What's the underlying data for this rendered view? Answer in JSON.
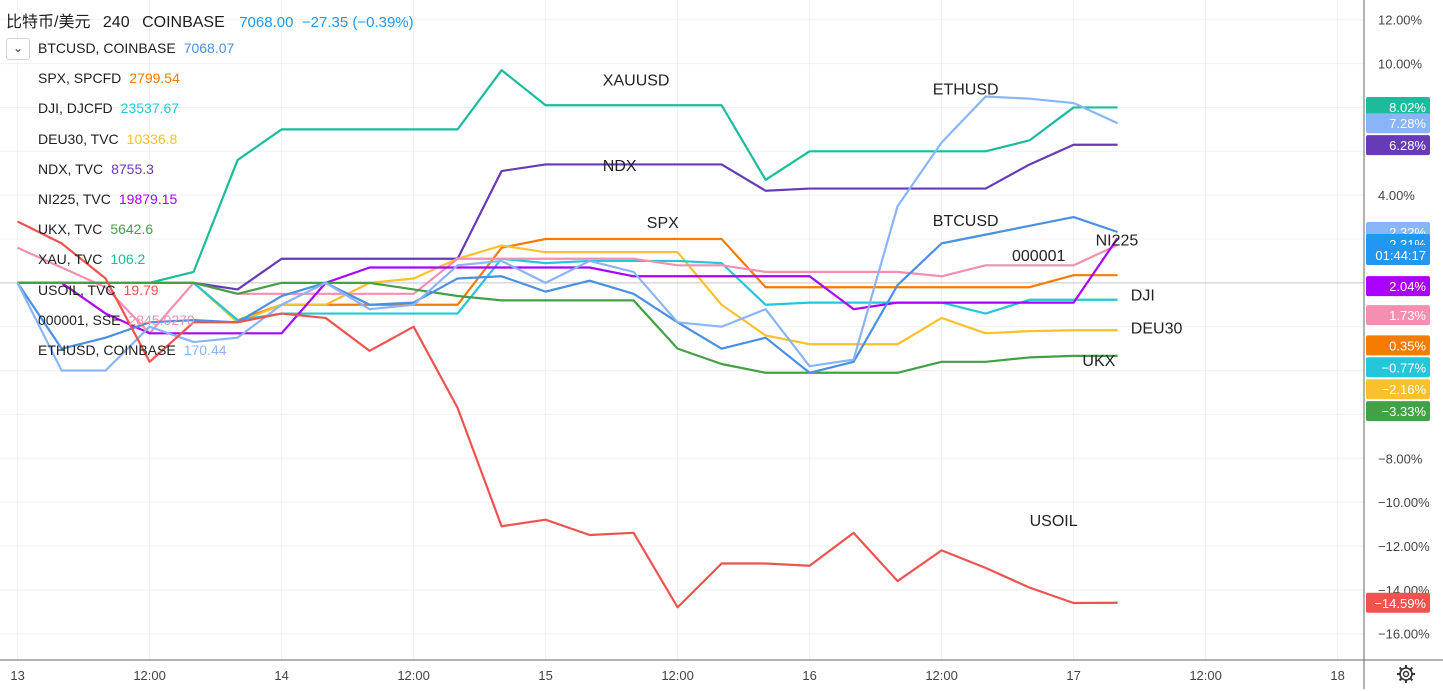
{
  "header": {
    "symbol": "比特币/美元",
    "resolution": "240",
    "exchange": "COINBASE",
    "price": "7068.00",
    "change": "−27.35 (−0.39%)"
  },
  "legend": [
    {
      "symbol": "BTCUSD, COINBASE",
      "value": "7068.07",
      "color": "#4a90e2"
    },
    {
      "symbol": "SPX, SPCFD",
      "value": "2799.54",
      "color": "#f57c00"
    },
    {
      "symbol": "DJI, DJCFD",
      "value": "23537.67",
      "color": "#26c6da"
    },
    {
      "symbol": "DEU30, TVC",
      "value": "10336.8",
      "color": "#fbc02d"
    },
    {
      "symbol": "NDX, TVC",
      "value": "8755.3",
      "color": "#673ab7"
    },
    {
      "symbol": "NI225, TVC",
      "value": "19879.15",
      "color": "#aa00ff"
    },
    {
      "symbol": "UKX, TVC",
      "value": "5642.6",
      "color": "#43a047"
    },
    {
      "symbol": "XAU, TVC",
      "value": "106.2",
      "color": "#1abc9c"
    },
    {
      "symbol": "USOIL, TVC",
      "value": "19.79",
      "color": "#ef5350"
    },
    {
      "symbol": "000001, SSE",
      "value": "2845.0270",
      "color": "#f48fb1"
    },
    {
      "symbol": "ETHUSD, COINBASE",
      "value": "170.44",
      "color": "#8ab4f8"
    }
  ],
  "chart_data": {
    "type": "line",
    "y_unit": "%",
    "ylim": [
      -17.2,
      12.9
    ],
    "y_ticks": [
      "12.00%",
      "10.00%",
      "4.00%",
      "−8.00%",
      "−10.00%",
      "−12.00%",
      "−14.00%",
      "−16.00%"
    ],
    "x_tick_labels": [
      "13",
      "12:00",
      "14",
      "12:00",
      "15",
      "12:00",
      "16",
      "12:00",
      "17",
      "12:00",
      "18"
    ],
    "x_range_bars": [
      -0.4,
      30.6
    ],
    "series": [
      {
        "name": "XAUUSD",
        "color": "#1abc9c",
        "x": [
          0,
          1,
          2,
          3,
          4,
          5,
          6,
          7,
          8,
          9,
          10,
          11,
          12,
          13,
          14,
          15,
          16,
          17,
          18,
          19,
          20,
          21,
          22,
          23,
          24,
          25
        ],
        "y": [
          0,
          0,
          0,
          0,
          0.5,
          5.6,
          7.0,
          7.0,
          7.0,
          7.0,
          7.0,
          9.7,
          8.1,
          8.1,
          8.1,
          8.1,
          8.1,
          4.7,
          6.0,
          6.0,
          6.0,
          6.0,
          6.0,
          6.5,
          8.0,
          8.0
        ]
      },
      {
        "name": "NDX",
        "color": "#673ab7",
        "x": [
          0,
          1,
          2,
          3,
          4,
          5,
          6,
          7,
          8,
          9,
          10,
          11,
          12,
          13,
          14,
          15,
          16,
          17,
          18,
          19,
          20,
          21,
          22,
          23,
          24,
          25
        ],
        "y": [
          0,
          0,
          0,
          0,
          0,
          -0.3,
          1.1,
          1.1,
          1.1,
          1.1,
          1.1,
          5.1,
          5.4,
          5.4,
          5.4,
          5.4,
          5.4,
          4.2,
          4.3,
          4.3,
          4.3,
          4.3,
          4.3,
          5.4,
          6.3,
          6.3
        ]
      },
      {
        "name": "SPX",
        "color": "#f57c00",
        "x": [
          0,
          1,
          2,
          3,
          4,
          5,
          6,
          7,
          8,
          9,
          10,
          11,
          12,
          13,
          14,
          15,
          16,
          17,
          18,
          19,
          20,
          21,
          22,
          23,
          24,
          25
        ],
        "y": [
          0,
          0,
          0,
          0,
          0,
          -1.7,
          -1.0,
          -1.0,
          -1.0,
          -1.0,
          -1.0,
          1.6,
          2.0,
          2.0,
          2.0,
          2.0,
          2.0,
          -0.2,
          -0.2,
          -0.2,
          -0.2,
          -0.2,
          -0.2,
          -0.2,
          0.35,
          0.35
        ]
      },
      {
        "name": "DEU30",
        "color": "#fbc02d",
        "x": [
          0,
          1,
          2,
          3,
          4,
          5,
          6,
          7,
          8,
          9,
          10,
          11,
          12,
          13,
          14,
          15,
          16,
          17,
          18,
          19,
          20,
          21,
          22,
          23,
          24,
          25
        ],
        "y": [
          0,
          0,
          0,
          0,
          0,
          -1.8,
          -1.0,
          -1.0,
          0,
          0.2,
          1.1,
          1.7,
          1.4,
          1.4,
          1.4,
          1.4,
          -1.0,
          -2.4,
          -2.8,
          -2.8,
          -2.8,
          -1.6,
          -2.3,
          -2.2,
          -2.16,
          -2.16
        ]
      },
      {
        "name": "DJI",
        "color": "#26c6da",
        "x": [
          0,
          1,
          2,
          3,
          4,
          5,
          6,
          7,
          8,
          9,
          10,
          11,
          12,
          13,
          14,
          15,
          16,
          17,
          18,
          19,
          20,
          21,
          22,
          23,
          24,
          25
        ],
        "y": [
          0,
          0,
          0,
          0,
          0,
          -1.7,
          -1.4,
          -1.4,
          -1.4,
          -1.4,
          -1.4,
          1.1,
          0.9,
          1.0,
          1.0,
          1.0,
          0.9,
          -1.0,
          -0.9,
          -0.9,
          -0.9,
          -0.9,
          -1.4,
          -0.77,
          -0.77,
          -0.77
        ]
      },
      {
        "name": "000001",
        "color": "#f48fb1",
        "x": [
          0,
          1,
          2,
          3,
          4,
          5,
          6,
          7,
          8,
          9,
          10,
          11,
          12,
          13,
          14,
          15,
          16,
          17,
          18,
          19,
          20,
          21,
          22,
          23,
          24,
          25
        ],
        "y": [
          1.6,
          0.7,
          -0.2,
          -2.3,
          0,
          -0.5,
          -0.5,
          -0.5,
          -0.5,
          -0.5,
          1.1,
          1.1,
          1.1,
          1.1,
          1.1,
          0.8,
          0.8,
          0.5,
          0.5,
          0.5,
          0.5,
          0.3,
          0.8,
          0.8,
          0.8,
          1.73
        ]
      },
      {
        "name": "NI225",
        "color": "#aa00ff",
        "x": [
          0,
          1,
          2,
          3,
          4,
          5,
          6,
          7,
          8,
          9,
          10,
          11,
          12,
          13,
          14,
          15,
          16,
          17,
          18,
          19,
          20,
          21,
          22,
          23,
          24,
          25
        ],
        "y": [
          0,
          0,
          -1.4,
          -2.3,
          -2.3,
          -2.3,
          -2.3,
          0,
          0.7,
          0.7,
          0.7,
          0.7,
          0.7,
          0.7,
          0.3,
          0.3,
          0.3,
          0.3,
          0.3,
          -1.2,
          -0.9,
          -0.9,
          -0.9,
          -0.9,
          -0.9,
          2.04
        ]
      },
      {
        "name": "UKX",
        "color": "#43a047",
        "x": [
          0,
          1,
          2,
          3,
          4,
          5,
          6,
          7,
          8,
          9,
          10,
          11,
          12,
          13,
          14,
          15,
          16,
          17,
          18,
          19,
          20,
          21,
          22,
          23,
          24,
          25
        ],
        "y": [
          0,
          0,
          0,
          0,
          0,
          -0.5,
          0,
          0,
          0,
          -0.3,
          -0.6,
          -0.8,
          -0.8,
          -0.8,
          -0.8,
          -3.0,
          -3.7,
          -4.1,
          -4.1,
          -4.1,
          -4.1,
          -3.6,
          -3.6,
          -3.4,
          -3.33,
          -3.33
        ]
      },
      {
        "name": "BTCUSD",
        "color": "#4a90e2",
        "x": [
          0,
          1,
          2,
          3,
          4,
          5,
          6,
          7,
          8,
          9,
          10,
          11,
          12,
          13,
          14,
          15,
          16,
          17,
          18,
          19,
          20,
          21,
          22,
          23,
          24,
          25
        ],
        "y": [
          0,
          -3.0,
          -2.5,
          -1.8,
          -1.7,
          -1.8,
          -0.6,
          0,
          -1.0,
          -0.9,
          0.2,
          0.3,
          -0.4,
          0.1,
          -0.5,
          -1.8,
          -3.0,
          -2.5,
          -4.1,
          -3.6,
          -0.1,
          1.8,
          2.2,
          2.6,
          3.0,
          2.32
        ]
      },
      {
        "name": "ETHUSD",
        "color": "#8ab4f8",
        "x": [
          0,
          1,
          2,
          3,
          4,
          5,
          6,
          7,
          8,
          9,
          10,
          11,
          12,
          13,
          14,
          15,
          16,
          17,
          18,
          19,
          20,
          21,
          22,
          23,
          24,
          25
        ],
        "y": [
          0,
          -4.0,
          -4.0,
          -2.0,
          -2.7,
          -2.5,
          -1.0,
          0,
          -1.2,
          -1.0,
          0.8,
          1.0,
          0,
          1.0,
          0.5,
          -1.8,
          -2.0,
          -1.2,
          -3.8,
          -3.5,
          3.5,
          6.4,
          8.5,
          8.4,
          8.2,
          7.28
        ]
      },
      {
        "name": "USOIL",
        "color": "#ef5350",
        "x": [
          0,
          1,
          2,
          3,
          4,
          5,
          6,
          7,
          8,
          9,
          10,
          11,
          12,
          13,
          14,
          15,
          16,
          17,
          18,
          19,
          20,
          21,
          22,
          23,
          24,
          25
        ],
        "y": [
          2.8,
          1.8,
          0.2,
          -3.6,
          -1.8,
          -1.8,
          -1.4,
          -1.6,
          -3.1,
          -2.0,
          -5.7,
          -11.1,
          -10.8,
          -11.5,
          -11.4,
          -14.8,
          -12.8,
          -12.8,
          -12.9,
          -11.4,
          -13.6,
          -12.2,
          -13.0,
          -13.9,
          -14.6,
          -14.59
        ]
      }
    ],
    "line_labels": [
      {
        "text": "XAUUSD",
        "x": 13.3,
        "y": 9.0
      },
      {
        "text": "NDX",
        "x": 13.3,
        "y": 5.1
      },
      {
        "text": "SPX",
        "x": 14.3,
        "y": 2.5
      },
      {
        "text": "ETHUSD",
        "x": 20.8,
        "y": 8.6
      },
      {
        "text": "BTCUSD",
        "x": 20.8,
        "y": 2.6
      },
      {
        "text": "000001",
        "x": 22.6,
        "y": 1.0
      },
      {
        "text": "NI225",
        "x": 24.5,
        "y": 1.7
      },
      {
        "text": "DJI",
        "x": 25.3,
        "y": -0.8
      },
      {
        "text": "DEU30",
        "x": 25.3,
        "y": -2.3
      },
      {
        "text": "UKX",
        "x": 24.2,
        "y": -3.8
      },
      {
        "text": "USOIL",
        "x": 23.0,
        "y": -11.1
      }
    ],
    "price_tags": [
      {
        "text": "8.02%",
        "y": 8.02,
        "color": "#1abc9c"
      },
      {
        "text": "7.28%",
        "y": 7.28,
        "color": "#8ab4f8"
      },
      {
        "text": "6.28%",
        "y": 6.28,
        "color": "#673ab7"
      },
      {
        "text": "2.32%",
        "y": 2.32,
        "color": "#8ab4f8"
      },
      {
        "text": "2.31%",
        "y": 1.77,
        "color": "#2196f3"
      },
      {
        "text": "01:44:17",
        "y": 1.27,
        "color": "#2196f3"
      },
      {
        "text": "2.04%",
        "y": -0.15,
        "color": "#aa00ff"
      },
      {
        "text": "1.73%",
        "y": -1.47,
        "color": "#f48fb1"
      },
      {
        "text": "0.35%",
        "y": -2.85,
        "color": "#f57c00"
      },
      {
        "text": "−0.77%",
        "y": -3.85,
        "color": "#26c6da"
      },
      {
        "text": "−2.16%",
        "y": -4.85,
        "color": "#fbc02d"
      },
      {
        "text": "−3.33%",
        "y": -5.85,
        "color": "#43a047"
      },
      {
        "text": "−14.59%",
        "y": -14.59,
        "color": "#ef5350"
      }
    ]
  }
}
